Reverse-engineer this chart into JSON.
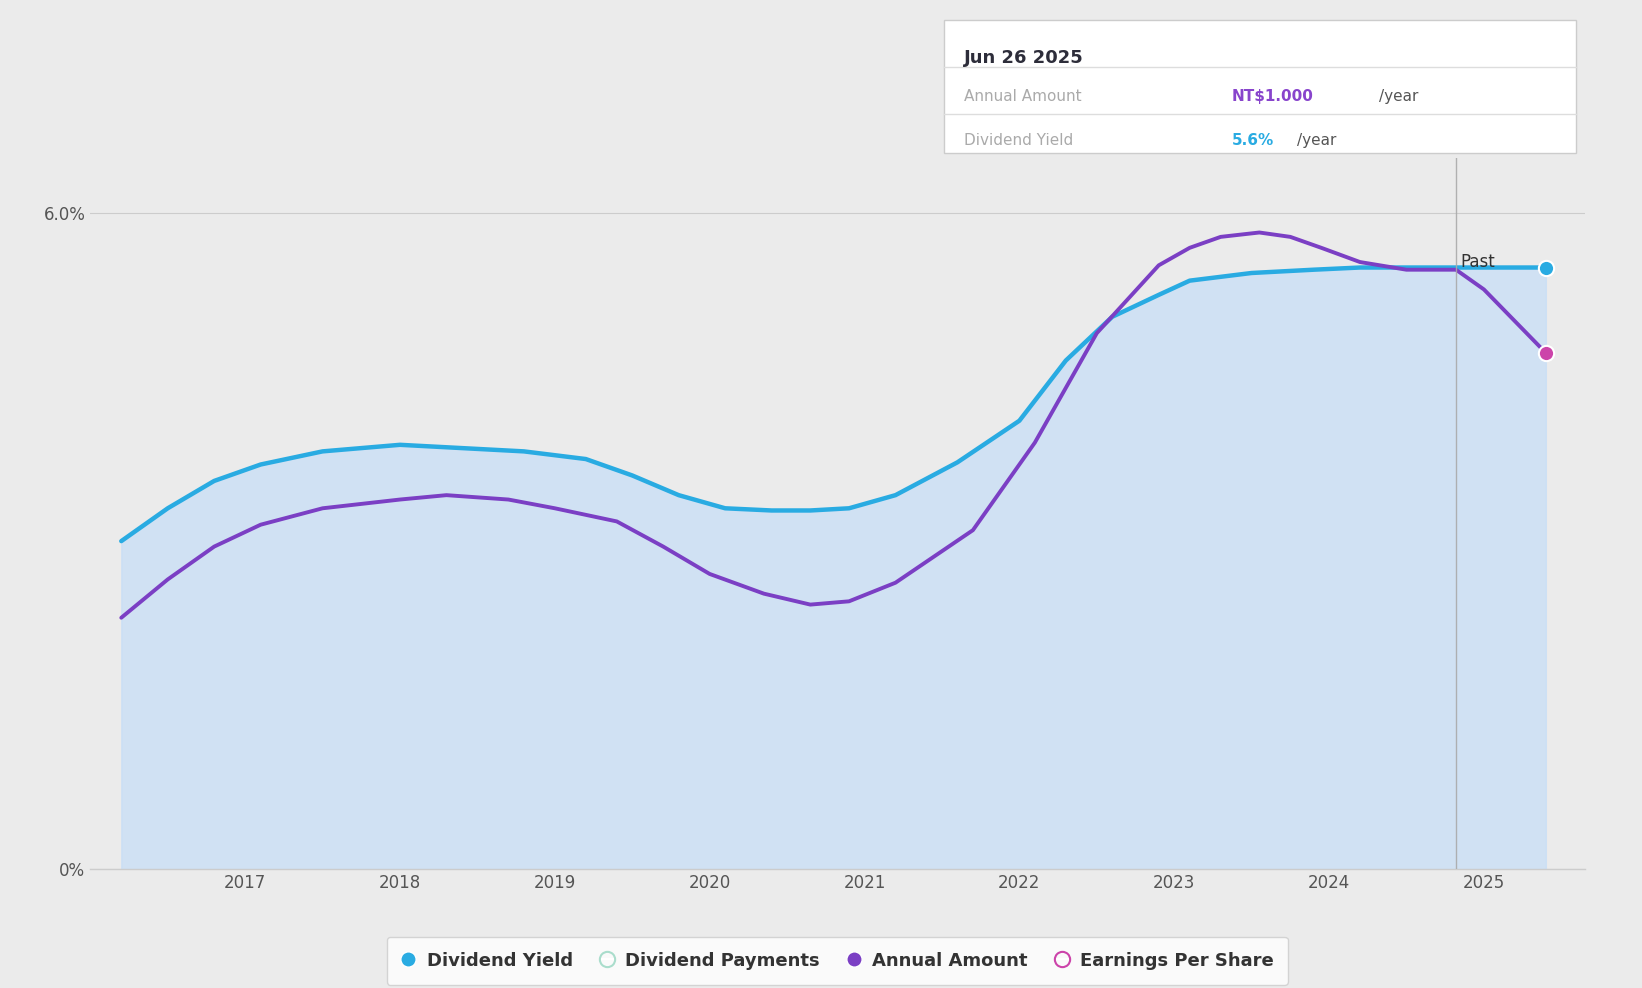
{
  "background_color": "#ebebeb",
  "plot_bg_color": "#ebebeb",
  "dividend_yield_x": [
    2016.2,
    2016.5,
    2016.8,
    2017.1,
    2017.5,
    2018.0,
    2018.4,
    2018.8,
    2019.2,
    2019.5,
    2019.8,
    2020.1,
    2020.4,
    2020.65,
    2020.9,
    2021.2,
    2021.6,
    2022.0,
    2022.3,
    2022.6,
    2022.9,
    2023.1,
    2023.5,
    2023.9,
    2024.2,
    2024.5,
    2024.82,
    2025.0,
    2025.4
  ],
  "dividend_yield_y": [
    3.0,
    3.3,
    3.55,
    3.7,
    3.82,
    3.88,
    3.85,
    3.82,
    3.75,
    3.6,
    3.42,
    3.3,
    3.28,
    3.28,
    3.3,
    3.42,
    3.72,
    4.1,
    4.65,
    5.05,
    5.25,
    5.38,
    5.45,
    5.48,
    5.5,
    5.5,
    5.5,
    5.5,
    5.5
  ],
  "annual_amount_x": [
    2016.2,
    2016.5,
    2016.8,
    2017.1,
    2017.5,
    2018.0,
    2018.3,
    2018.7,
    2019.0,
    2019.4,
    2019.7,
    2020.0,
    2020.35,
    2020.65,
    2020.9,
    2021.2,
    2021.7,
    2022.1,
    2022.5,
    2022.9,
    2023.1,
    2023.3,
    2023.55,
    2023.75,
    2023.95,
    2024.2,
    2024.5,
    2024.82,
    2025.0,
    2025.4
  ],
  "annual_amount_y": [
    2.3,
    2.65,
    2.95,
    3.15,
    3.3,
    3.38,
    3.42,
    3.38,
    3.3,
    3.18,
    2.95,
    2.7,
    2.52,
    2.42,
    2.45,
    2.62,
    3.1,
    3.9,
    4.9,
    5.52,
    5.68,
    5.78,
    5.82,
    5.78,
    5.68,
    5.55,
    5.48,
    5.48,
    5.3,
    4.72
  ],
  "past_line_x": 2024.82,
  "ylim": [
    0,
    6.5
  ],
  "ytick_val_low": 0,
  "ytick_val_high": 6.0,
  "ytick_label_low": "0%",
  "ytick_label_high": "6.0%",
  "xticks": [
    2017,
    2018,
    2019,
    2020,
    2021,
    2022,
    2023,
    2024,
    2025
  ],
  "tooltip_date": "Jun 26 2025",
  "tooltip_annual_label": "Annual Amount",
  "tooltip_annual_value_colored": "NT$1.000",
  "tooltip_annual_value_plain": "/year",
  "tooltip_annual_color": "#8844CC",
  "tooltip_yield_label": "Dividend Yield",
  "tooltip_yield_value_colored": "5.6%",
  "tooltip_yield_value_plain": "/year",
  "tooltip_yield_color": "#29ABE2",
  "line_color_yield": "#29ABE2",
  "line_color_amount": "#7B3FC4",
  "fill_color_rgb": [
    0.78,
    0.87,
    0.97
  ],
  "fill_alpha": 0.75,
  "dot_color_yield": "#29ABE2",
  "dot_color_amount": "#CC44AA",
  "past_label": "Past",
  "legend_items": [
    {
      "label": "Dividend Yield",
      "color": "#29ABE2",
      "marker": "o",
      "filled": true
    },
    {
      "label": "Dividend Payments",
      "color": "#aaddcc",
      "marker": "o",
      "filled": false
    },
    {
      "label": "Annual Amount",
      "color": "#7B3FC4",
      "marker": "o",
      "filled": true
    },
    {
      "label": "Earnings Per Share",
      "color": "#CC44AA",
      "marker": "o",
      "filled": false
    }
  ]
}
